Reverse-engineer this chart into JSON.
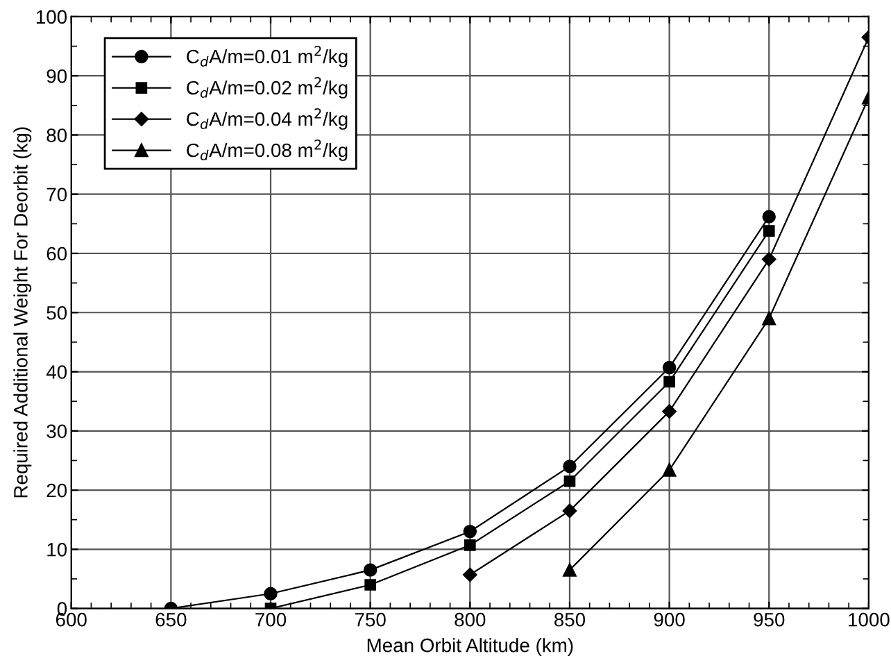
{
  "chart_data": {
    "type": "line",
    "xlabel": "Mean Orbit Altitude (km)",
    "ylabel": "Required Additional Weight For Deorbit (kg)",
    "xlim": [
      600,
      1000
    ],
    "xticks": [
      600,
      650,
      700,
      750,
      800,
      850,
      900,
      950,
      1000
    ],
    "ylim": [
      0,
      100
    ],
    "yticks": [
      0,
      10,
      20,
      30,
      40,
      50,
      60,
      70,
      80,
      90,
      100
    ],
    "grid": true,
    "legend": "top left",
    "line_style": "solid",
    "series": [
      {
        "name": "C$_{d}$A/m=0.01 m$^{2}$/kg",
        "color": "#000000",
        "marker": "circle",
        "x": [
          650,
          700,
          750,
          800,
          850,
          900,
          950
        ],
        "values": [
          0,
          2.5,
          6.5,
          13,
          24,
          40.7,
          66.2
        ]
      },
      {
        "name": "C$_{d}$A/m=0.02 m$^{2}$/kg",
        "color": "#000000",
        "marker": "square",
        "x": [
          700,
          750,
          800,
          850,
          900,
          950
        ],
        "values": [
          0,
          4,
          10.7,
          21.5,
          38.3,
          63.8
        ]
      },
      {
        "name": "C$_{d}$A/m=0.04 m$^{2}$/kg",
        "color": "#000000",
        "marker": "diamond",
        "x": [
          800,
          850,
          900,
          950,
          1000
        ],
        "values": [
          5.7,
          16.5,
          33.3,
          59,
          96.5
        ]
      },
      {
        "name": "C$_{d}$A/m=0.08 m$^{2}$/kg",
        "color": "#000000",
        "marker": "triangle",
        "x": [
          850,
          900,
          950,
          1000
        ],
        "values": [
          6.5,
          23.4,
          49,
          86.3
        ]
      }
    ]
  }
}
